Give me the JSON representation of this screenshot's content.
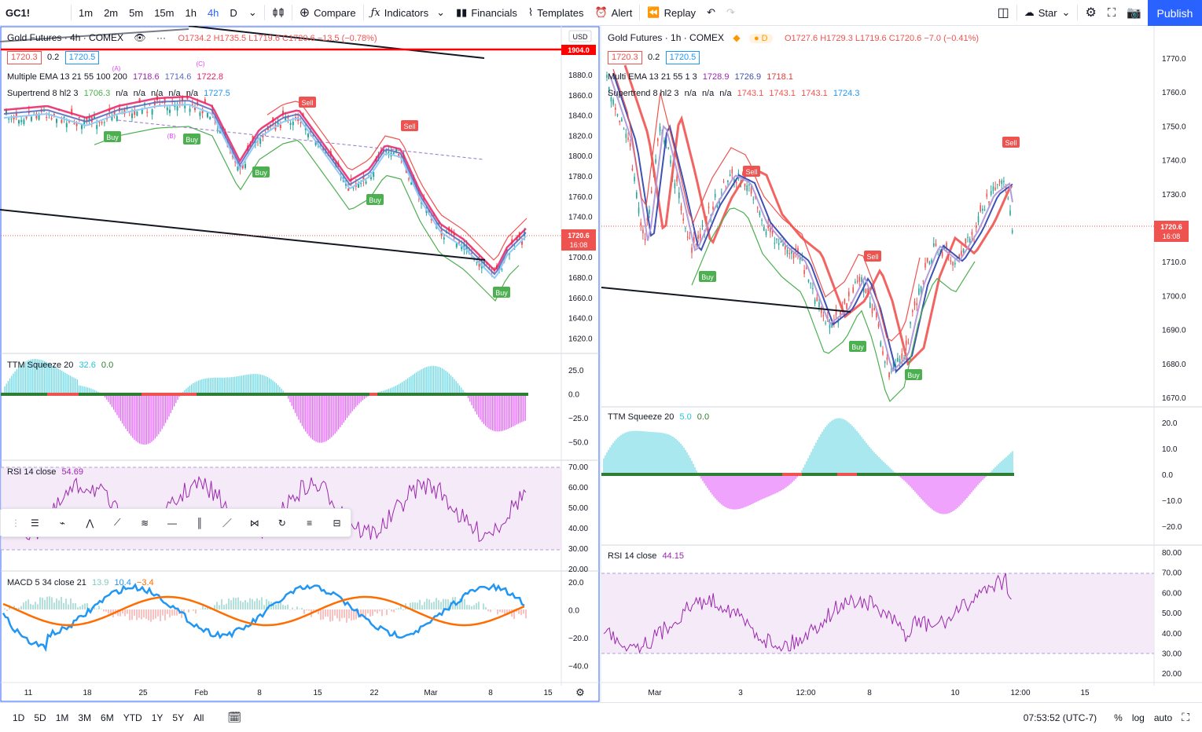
{
  "toolbar": {
    "symbol": "GC1!",
    "intervals": [
      "1m",
      "2m",
      "5m",
      "15m",
      "1h",
      "4h",
      "D"
    ],
    "active_interval": "4h",
    "compare": "Compare",
    "indicators": "Indicators",
    "financials": "Financials",
    "templates": "Templates",
    "alert": "Alert",
    "replay": "Replay",
    "star": "Star",
    "publish": "Publish"
  },
  "left_chart": {
    "title": "Gold Futures · 4h · COMEX",
    "ohlc": "O1734.2 H1735.5 L1719.6 C1720.6 −13.5 (−0.78%)",
    "bid": "1720.3",
    "spread": "0.2",
    "ask": "1720.5",
    "currency": "USD",
    "ema_label": "Multiple EMA 13 21 55 100 200",
    "ema_values": [
      "1718.6",
      "1714.6",
      "1722.8"
    ],
    "supertrend_label": "Supertrend 8 hl2 3",
    "supertrend_values": [
      "1706.3",
      "n/a",
      "n/a",
      "n/a",
      "n/a",
      "n/a",
      "1727.5"
    ],
    "price_axis": [
      "1880.0",
      "1860.0",
      "1840.0",
      "1820.0",
      "1800.0",
      "1780.0",
      "1760.0",
      "1740.0",
      "1720.0",
      "1700.0",
      "1680.0",
      "1660.0",
      "1640.0",
      "1620.0"
    ],
    "line_price_tag": "1904.0",
    "last_price_tag": "1720.6",
    "last_price_time": "16:08",
    "ttm_label": "TTM Squeeze 20",
    "ttm_values": [
      "32.6",
      "0.0"
    ],
    "ttm_axis": [
      "25.0",
      "0.0",
      "−25.0",
      "−50.0"
    ],
    "rsi_label": "RSI 14 close",
    "rsi_value": "54.69",
    "rsi_axis": [
      "70.00",
      "60.00",
      "50.00",
      "40.00",
      "30.00",
      "20.00"
    ],
    "macd_label": "MACD 5 34 close 21",
    "macd_values": [
      "13.9",
      "10.4",
      "−3.4"
    ],
    "macd_axis": [
      "20.0",
      "0.0",
      "−20.0",
      "−40.0"
    ],
    "time_axis": [
      "11",
      "18",
      "25",
      "Feb",
      "8",
      "15",
      "22",
      "Mar",
      "8",
      "15"
    ],
    "wave_labels": [
      "(A)",
      "(B)",
      "(C)"
    ]
  },
  "right_chart": {
    "title": "Gold Futures · 1h · COMEX",
    "ohlc": "O1727.6 H1729.3 L1719.6 C1720.6 −7.0 (−0.41%)",
    "bid": "1720.3",
    "spread": "0.2",
    "ask": "1720.5",
    "ema_label": "Multi EMA 13 21 55 1 3",
    "ema_values": [
      "1728.9",
      "1726.9",
      "1718.1"
    ],
    "supertrend_label": "Supertrend 8 hl2 3",
    "supertrend_values": [
      "n/a",
      "n/a",
      "n/a",
      "1743.1",
      "1743.1",
      "1743.1",
      "1724.3"
    ],
    "price_axis": [
      "1770.0",
      "1760.0",
      "1750.0",
      "1740.0",
      "1730.0",
      "1720.0",
      "1710.0",
      "1700.0",
      "1690.0",
      "1680.0",
      "1670.0"
    ],
    "last_price_tag": "1720.6",
    "last_price_time": "16:08",
    "ttm_label": "TTM Squeeze 20",
    "ttm_values": [
      "5.0",
      "0.0"
    ],
    "ttm_axis": [
      "20.0",
      "10.0",
      "0.0",
      "−10.0",
      "−20.0"
    ],
    "rsi_label": "RSI 14 close",
    "rsi_value": "44.15",
    "rsi_axis": [
      "80.00",
      "70.00",
      "60.00",
      "50.00",
      "40.00",
      "30.00",
      "20.00"
    ],
    "time_axis": [
      "Mar",
      "3",
      "12:00",
      "8",
      "10",
      "12:00",
      "15"
    ]
  },
  "signals": {
    "buy": "Buy",
    "sell": "Sell"
  },
  "bottombar": {
    "ranges": [
      "1D",
      "5D",
      "1M",
      "3M",
      "6M",
      "YTD",
      "1Y",
      "5Y",
      "All"
    ],
    "clock": "07:53:52 (UTC-7)",
    "percent": "%",
    "log": "log",
    "auto": "auto"
  },
  "colors": {
    "up": "#26a69a",
    "down": "#ef5350",
    "accent": "#2962ff",
    "rsi": "#9c27b0",
    "macd": "#2196f3",
    "signal": "#ff6d00"
  }
}
